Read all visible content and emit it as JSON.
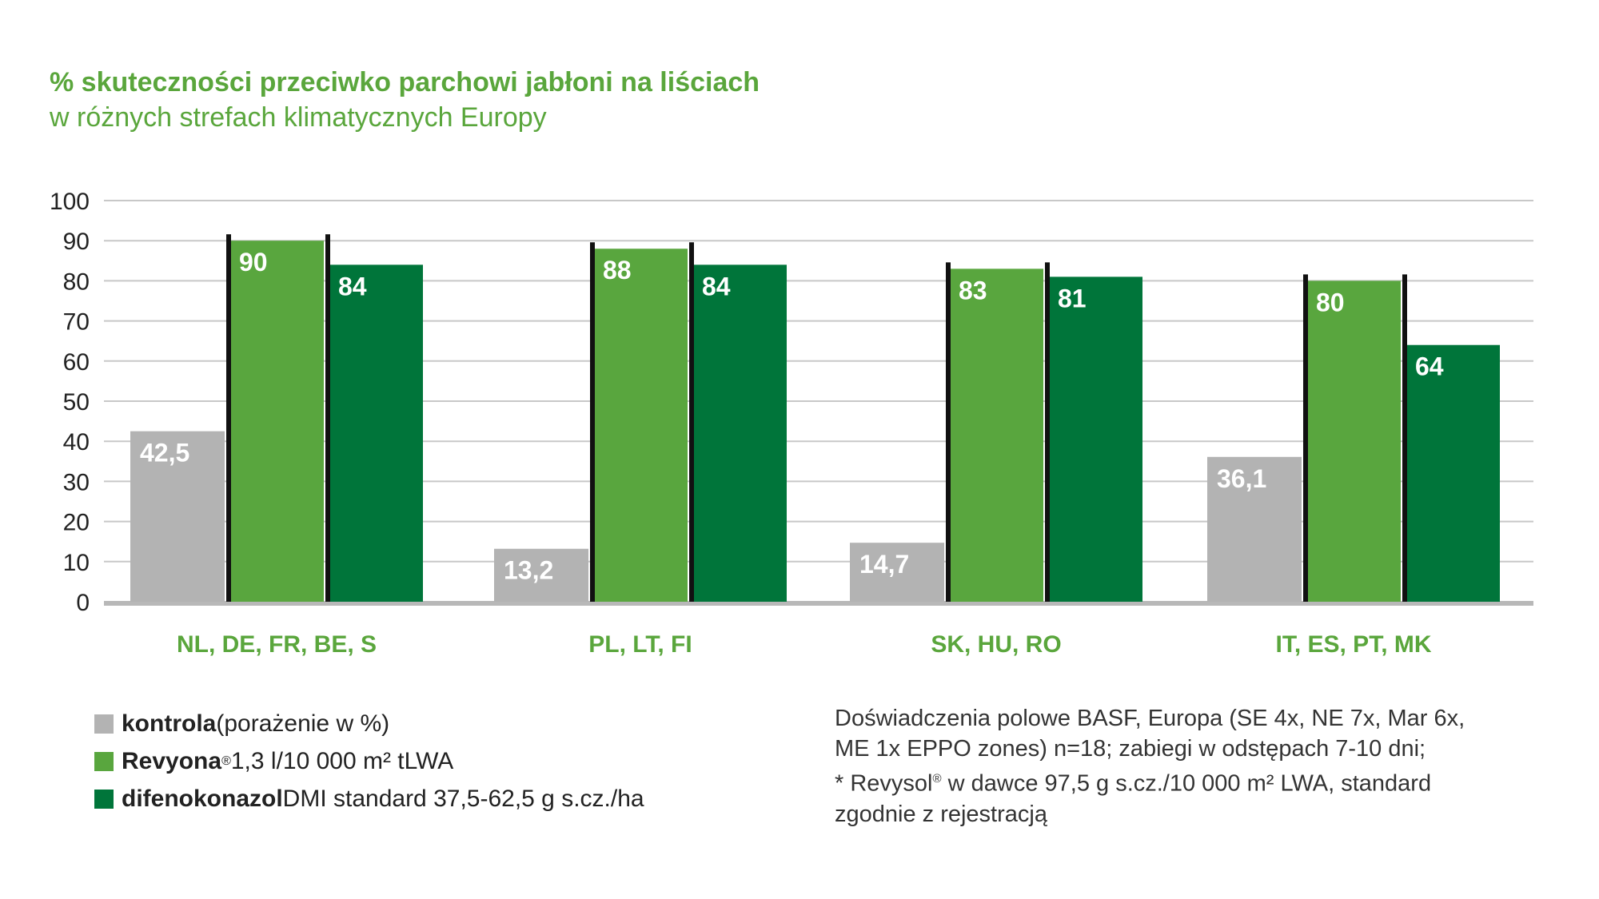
{
  "title": "% skuteczności przeciwko parchowi jabłoni na liściach",
  "subtitle": "w różnych strefach klimatycznych Europy",
  "colors": {
    "title": "#5aa63c",
    "kontrola": "#b3b3b3",
    "revyona": "#59a63e",
    "difenokonazol": "#00753a",
    "grid": "#c8c8c8",
    "axis": "#b8b8b8",
    "category_label": "#5aa63c"
  },
  "chart_data": {
    "type": "bar",
    "categories": [
      "NL, DE, FR, BE, S",
      "PL, LT, FI",
      "SK, HU, RO",
      "IT, ES, PT, MK"
    ],
    "series": [
      {
        "name": "kontrola",
        "values": [
          42.5,
          13.2,
          14.7,
          36.1
        ],
        "labels": [
          "42,5",
          "13,2",
          "14,7",
          "36,1"
        ]
      },
      {
        "name": "Revyona",
        "values": [
          90,
          88,
          83,
          80
        ],
        "labels": [
          "90",
          "88",
          "83",
          "80"
        ]
      },
      {
        "name": "difenokonazol",
        "values": [
          84,
          84,
          81,
          64
        ],
        "labels": [
          "84",
          "84",
          "81",
          "64"
        ]
      }
    ],
    "ylim": [
      0,
      100
    ],
    "yticks": [
      0,
      10,
      20,
      30,
      40,
      50,
      60,
      70,
      80,
      90,
      100
    ],
    "grid": true,
    "legend_position": "bottom-left"
  },
  "legend": [
    {
      "bold": "kontrola",
      "sup": "",
      "rest": " (porażenie w %)",
      "color": "#b3b3b3"
    },
    {
      "bold": "Revyona",
      "sup": "®",
      "rest": " 1,3 l/10 000 m² tLWA",
      "color": "#59a63e"
    },
    {
      "bold": "difenokonazol",
      "sup": "",
      "rest": " DMI standard 37,5-62,5 g s.cz./ha",
      "color": "#00753a"
    }
  ],
  "note": {
    "line1": "Doświadczenia polowe BASF, Europa (SE 4x, NE 7x, Mar 6x,",
    "line2": "ME 1x EPPO zones) n=18; zabiegi w odstępach 7-10 dni;",
    "line3_a": "* Revysol",
    "line3_sup": "®",
    "line3_b": " w dawce 97,5 g s.cz./10 000 m² LWA, standard",
    "line4": "zgodnie z rejestracją"
  }
}
